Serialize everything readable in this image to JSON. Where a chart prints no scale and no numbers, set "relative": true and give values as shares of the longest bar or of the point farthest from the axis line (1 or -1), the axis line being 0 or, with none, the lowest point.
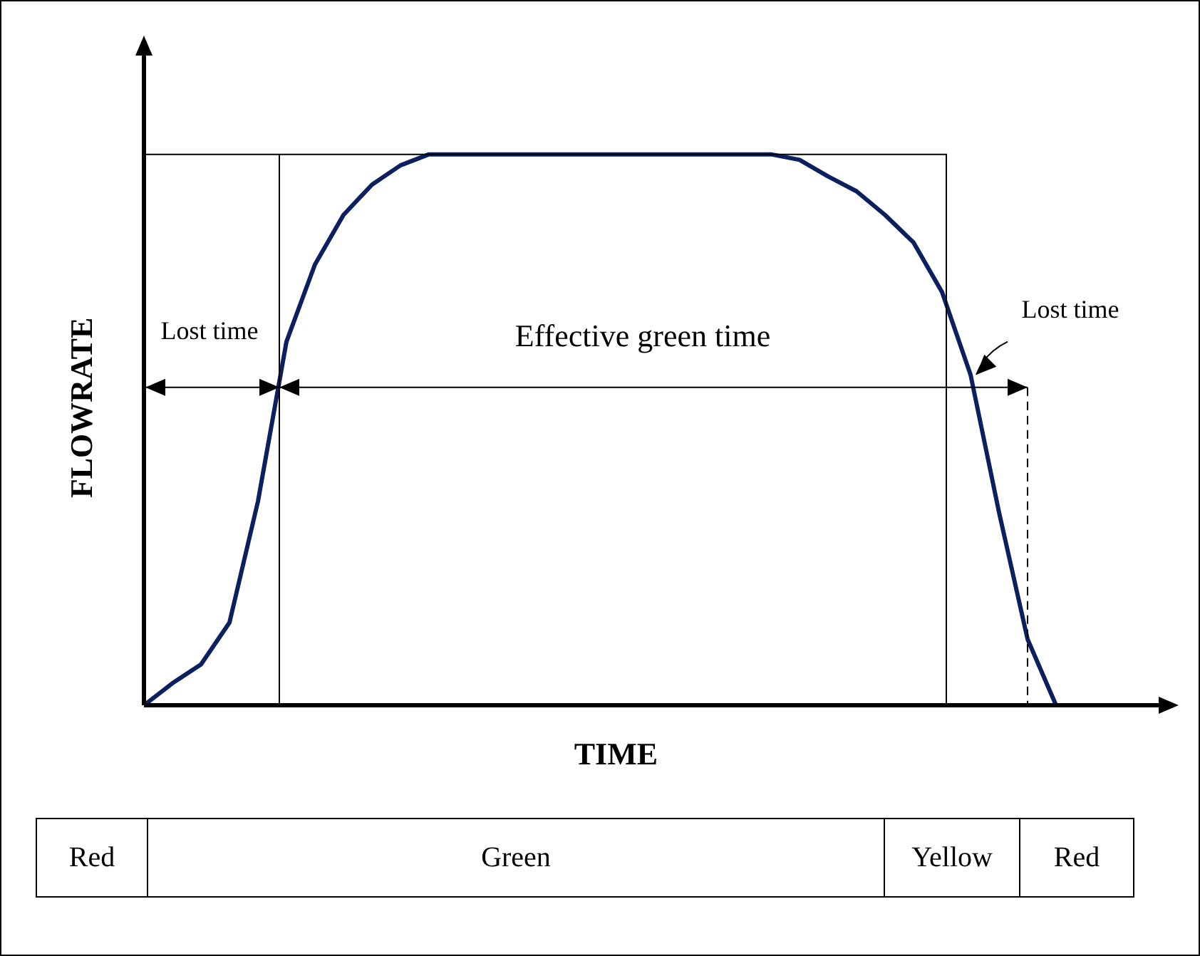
{
  "chart_data": {
    "type": "line",
    "relative": true,
    "xlabel": "TIME",
    "ylabel": "FLOWRATE",
    "marker": "none",
    "categories": [
      null,
      null,
      null,
      null,
      null,
      null,
      null,
      null,
      null,
      null,
      null,
      null,
      null,
      null,
      null,
      null,
      null,
      null,
      null,
      null,
      null,
      null,
      null,
      null,
      null,
      null,
      null,
      null,
      null,
      null,
      null,
      null,
      null,
      null,
      null,
      null,
      null
    ],
    "series": [
      {
        "color": "#0c2060",
        "values": [
          0,
          0.04,
          0.074,
          0.15,
          0.37,
          0.66,
          0.8,
          0.89,
          0.945,
          0.98,
          1,
          1,
          1,
          1,
          1,
          1,
          1,
          1,
          1,
          1,
          1,
          1,
          1,
          0.99,
          0.96,
          0.933,
          0.89,
          0.84,
          0.75,
          0.6,
          0.35,
          0.12,
          0,
          null,
          null,
          null,
          null
        ]
      }
    ],
    "ref_lines": [
      {
        "axis": "y",
        "value": 0.577
      }
    ],
    "annotations": [
      "Lost time",
      "Effective green time",
      "Lost time",
      "Red",
      "Green",
      "Yellow",
      "Red"
    ]
  }
}
